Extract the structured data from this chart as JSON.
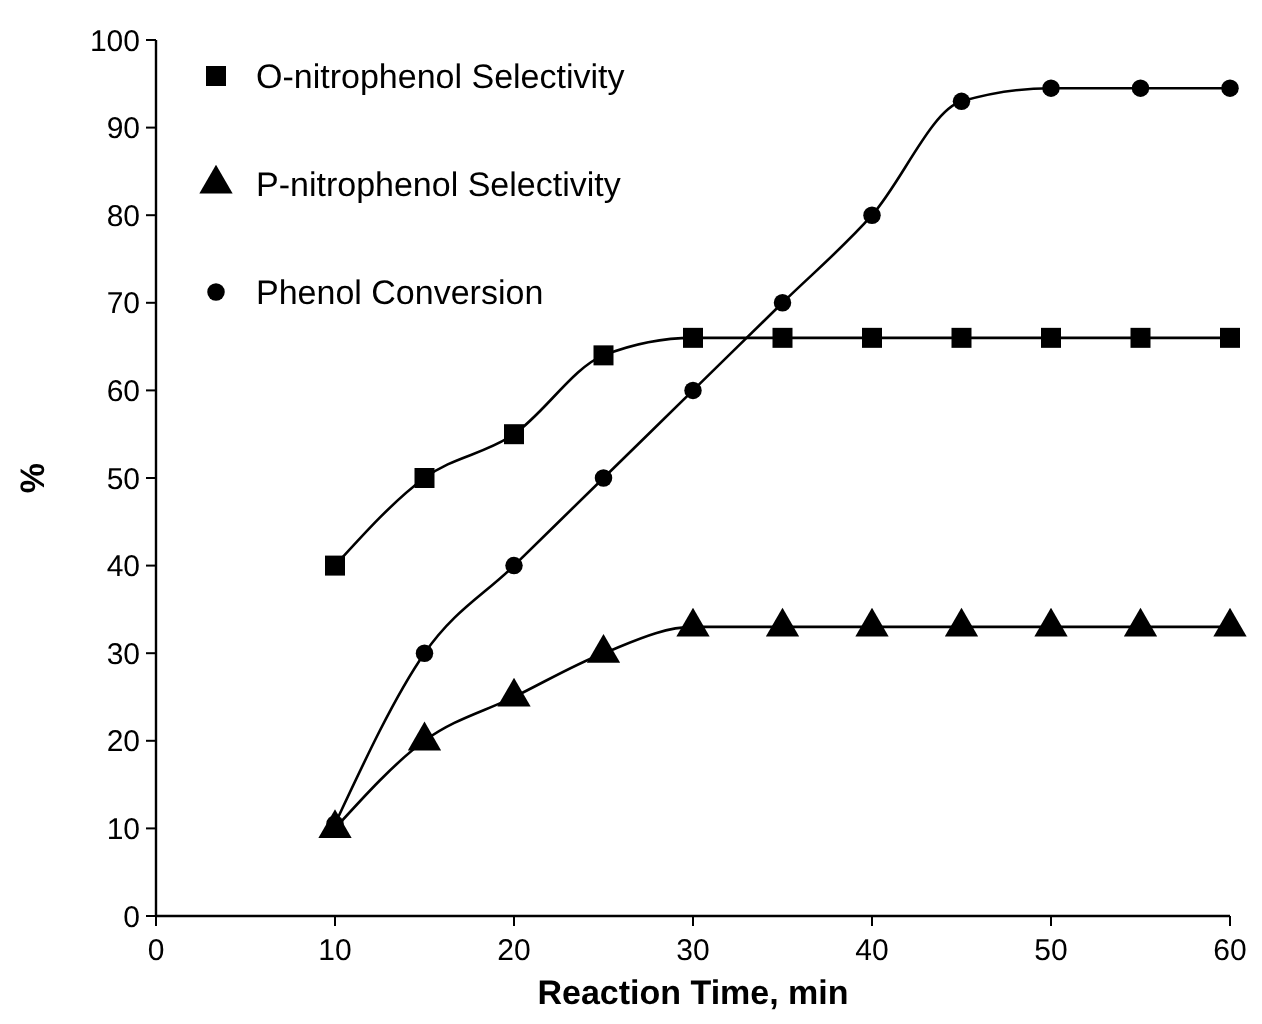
{
  "chart_data": {
    "type": "line",
    "xlabel": "Reaction Time, min",
    "ylabel": "%",
    "x": [
      10,
      15,
      20,
      25,
      30,
      35,
      40,
      45,
      50,
      55,
      60
    ],
    "series": [
      {
        "name": "O-nitrophenol Selectivity",
        "color": "#000000",
        "marker": "square",
        "values": [
          40,
          50,
          55,
          64,
          66,
          66,
          66,
          66,
          66,
          66,
          66
        ]
      },
      {
        "name": "P-nitrophenol Selectivity",
        "color": "#000000",
        "marker": "triangle",
        "values": [
          10,
          20,
          25,
          30,
          33,
          33,
          33,
          33,
          33,
          33,
          33
        ]
      },
      {
        "name": "Phenol Conversion",
        "color": "#000000",
        "marker": "circle",
        "values": [
          10.5,
          30,
          40,
          50,
          60,
          70,
          80,
          93,
          94.5,
          94.5,
          94.5
        ]
      }
    ],
    "xlim": [
      0,
      60
    ],
    "xticks": [
      0,
      10,
      20,
      30,
      40,
      50,
      60
    ],
    "ylim": [
      0,
      100
    ],
    "yticks": [
      0,
      10,
      20,
      30,
      40,
      50,
      60,
      70,
      80,
      90,
      100
    ],
    "grid": false,
    "legend": "top left",
    "line_style": "solid"
  }
}
